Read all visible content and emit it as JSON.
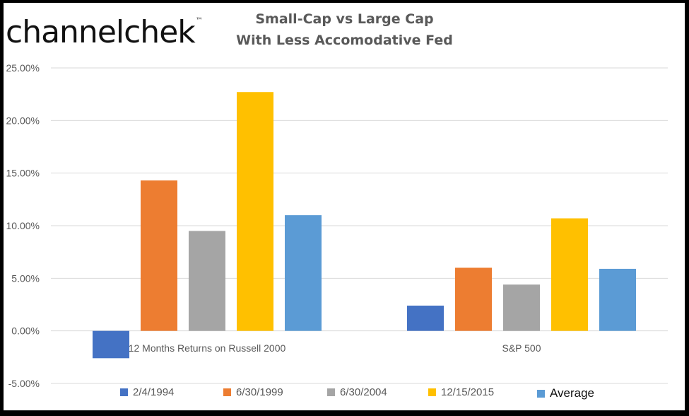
{
  "logo": {
    "text": "channelchek",
    "mark": "™"
  },
  "chart_data": {
    "type": "bar",
    "title": "Small-Cap vs Large Cap",
    "subtitle": "With Less Accomodative Fed",
    "categories": [
      "12 Months Returns on Russell 2000",
      "S&P 500"
    ],
    "series": [
      {
        "name": "2/4/1994",
        "color": "#4472C4",
        "values": [
          -2.6,
          2.4
        ]
      },
      {
        "name": "6/30/1999",
        "color": "#ED7D31",
        "values": [
          14.3,
          6.0
        ]
      },
      {
        "name": "6/30/2004",
        "color": "#A5A5A5",
        "values": [
          9.5,
          4.4
        ]
      },
      {
        "name": "12/15/2015",
        "color": "#FFC000",
        "values": [
          22.7,
          10.7
        ]
      },
      {
        "name": "Average",
        "color": "#5B9BD5",
        "values": [
          11.0,
          5.9
        ]
      }
    ],
    "y_ticks": [
      "25.00%",
      "20.00%",
      "15.00%",
      "10.00%",
      "5.00%",
      "0.00%",
      "-5.00%"
    ],
    "ylim": [
      -5,
      25
    ],
    "grid": true,
    "legend_position": "bottom"
  }
}
